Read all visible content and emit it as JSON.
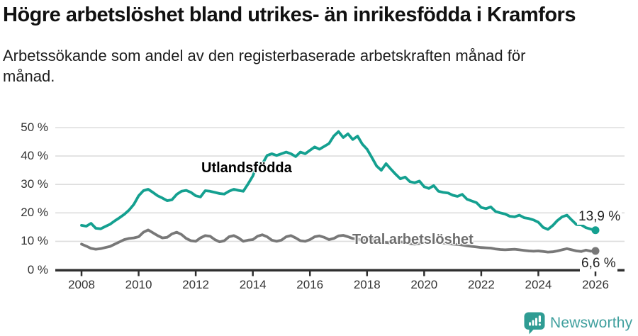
{
  "chart_data": {
    "type": "line",
    "title": "Högre arbetslöshet bland utrikes- än inrikesfödda i Kramfors",
    "subtitle": "Arbetssökande som andel av den registerbaserade arbetskraften månad för månad.",
    "grid": "horizontal",
    "legend_position": "inline-labels",
    "x_axis": {
      "tick_labels": [
        "2008",
        "2010",
        "2012",
        "2014",
        "2016",
        "2018",
        "2020",
        "2022",
        "2024",
        "2026"
      ],
      "tick_years": [
        2008,
        2010,
        2012,
        2014,
        2016,
        2018,
        2020,
        2022,
        2024,
        2026
      ],
      "range_years": [
        2008,
        2026
      ]
    },
    "y_axis": {
      "tick_labels": [
        "0 %",
        "10 %",
        "20 %",
        "30 %",
        "40 %",
        "50 %"
      ],
      "tick_values": [
        0,
        10,
        20,
        30,
        40,
        50
      ],
      "range": [
        0,
        50
      ],
      "unit": "%"
    },
    "x_start_year": 2008,
    "x_step_years": 0.166667,
    "series": [
      {
        "name": "Utlandsfödda",
        "color": "#14a090",
        "end_label": "13,9 %",
        "final_value": 13.9,
        "values": [
          15.6,
          15.3,
          16.3,
          14.6,
          14.4,
          15.2,
          16.0,
          17.2,
          18.3,
          19.5,
          21.0,
          23.0,
          26.0,
          27.8,
          28.3,
          27.2,
          26.0,
          25.2,
          24.3,
          24.6,
          26.5,
          27.6,
          27.9,
          27.2,
          26.0,
          25.6,
          27.8,
          27.6,
          27.2,
          26.8,
          26.6,
          27.6,
          28.3,
          27.9,
          27.6,
          30.2,
          33.0,
          37.5,
          37.2,
          40.2,
          40.8,
          40.2,
          40.8,
          41.4,
          40.8,
          39.8,
          41.4,
          40.8,
          42.0,
          43.2,
          42.4,
          43.4,
          44.4,
          47.0,
          48.6,
          46.5,
          47.8,
          45.8,
          47.0,
          44.2,
          42.4,
          39.5,
          36.5,
          35.0,
          37.3,
          35.4,
          33.6,
          32.0,
          32.6,
          31.0,
          30.6,
          31.2,
          29.2,
          28.6,
          29.6,
          27.6,
          27.2,
          27.0,
          26.2,
          25.8,
          26.5,
          24.8,
          24.2,
          23.6,
          21.9,
          21.5,
          22.1,
          20.5,
          20.0,
          19.6,
          18.8,
          18.6,
          19.2,
          18.3,
          18.0,
          17.5,
          16.7,
          14.9,
          14.2,
          15.5,
          17.3,
          18.6,
          19.2,
          17.5,
          15.9,
          15.8,
          14.8,
          14.3,
          13.9
        ]
      },
      {
        "name": "Total arbetslöshet",
        "color": "#787878",
        "end_label": "6,6 %",
        "final_value": 6.6,
        "values": [
          9.0,
          8.3,
          7.5,
          7.2,
          7.4,
          7.8,
          8.2,
          9.0,
          9.8,
          10.6,
          11.0,
          11.2,
          11.6,
          13.2,
          14.0,
          13.0,
          12.0,
          11.2,
          11.4,
          12.6,
          13.2,
          12.4,
          11.0,
          10.2,
          10.0,
          11.2,
          12.0,
          11.8,
          10.6,
          9.8,
          10.2,
          11.6,
          12.0,
          11.2,
          10.0,
          10.4,
          10.6,
          11.8,
          12.3,
          11.6,
          10.4,
          10.0,
          10.4,
          11.6,
          12.0,
          11.2,
          10.2,
          10.0,
          10.6,
          11.6,
          11.9,
          11.4,
          10.6,
          11.0,
          11.9,
          12.1,
          11.6,
          11.0,
          10.8,
          10.4,
          10.5,
          10.8,
          10.4,
          9.8,
          9.6,
          9.4,
          9.6,
          9.8,
          9.6,
          9.2,
          9.0,
          9.2,
          9.4,
          9.6,
          10.0,
          9.7,
          9.4,
          9.2,
          9.0,
          8.9,
          8.7,
          8.4,
          8.2,
          8.0,
          7.8,
          7.7,
          7.6,
          7.3,
          7.1,
          7.0,
          7.1,
          7.2,
          7.0,
          6.8,
          6.6,
          6.5,
          6.6,
          6.4,
          6.2,
          6.3,
          6.6,
          7.0,
          7.4,
          7.0,
          6.6,
          6.4,
          6.9,
          6.5,
          6.6
        ]
      }
    ]
  },
  "branding": {
    "logo_text": "Newsworthy",
    "logo_icon": "newsworthy-speech-bubble-bar-chart-icon",
    "logo_icon_color": "#2f9c93",
    "logo_text_color": "#40a09e"
  },
  "style_colors": {
    "gridline": "#dddddd",
    "axis": "#2f2f2f",
    "tick_text": "#333333",
    "title_text": "#111111",
    "annotation_text": "#222222"
  }
}
